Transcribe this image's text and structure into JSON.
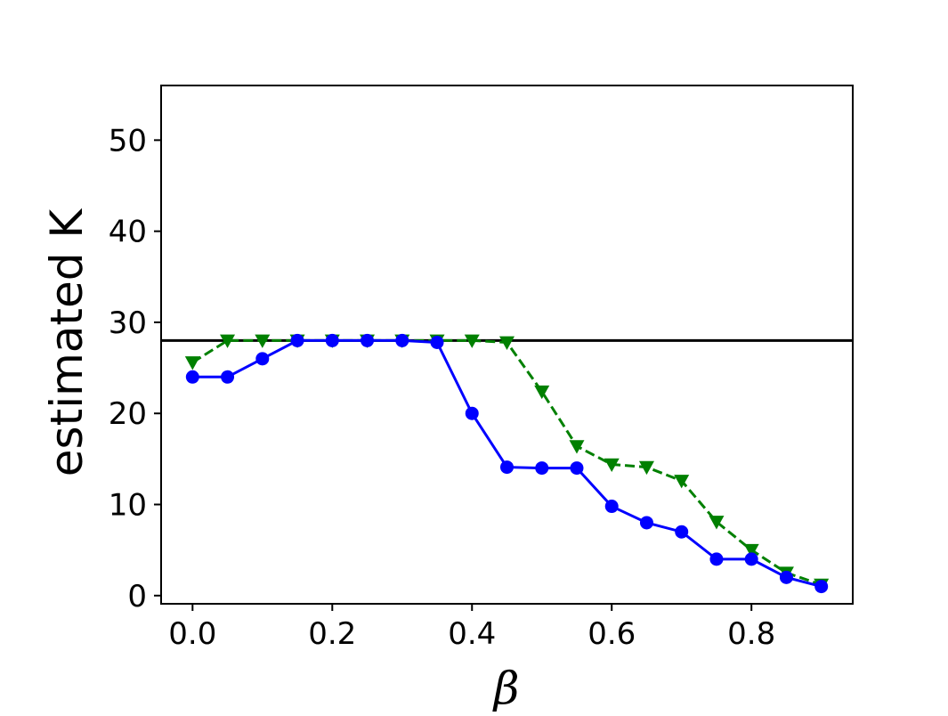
{
  "chart_data": {
    "type": "line",
    "title": "",
    "xlabel": "β",
    "ylabel": "estimated K",
    "xlim": [
      -0.045,
      0.945
    ],
    "ylim": [
      -0.9,
      56
    ],
    "xticks": [
      0.0,
      0.2,
      0.4,
      0.6,
      0.8
    ],
    "xtick_labels": [
      "0.0",
      "0.2",
      "0.4",
      "0.6",
      "0.8"
    ],
    "yticks": [
      0,
      10,
      20,
      30,
      40,
      50
    ],
    "ytick_labels": [
      "0",
      "10",
      "20",
      "30",
      "40",
      "50"
    ],
    "grid": false,
    "legend": "none",
    "x": [
      0.0,
      0.05,
      0.1,
      0.15,
      0.2,
      0.25,
      0.3,
      0.35,
      0.4,
      0.45,
      0.5,
      0.55,
      0.6,
      0.65,
      0.7,
      0.75,
      0.8,
      0.85,
      0.9
    ],
    "series": [
      {
        "color": "#0000ff",
        "marker": "circle",
        "linestyle": "solid",
        "values": [
          24,
          24,
          26,
          28,
          28,
          28,
          28,
          27.8,
          20,
          14.1,
          14,
          14,
          9.8,
          8,
          7,
          4,
          4,
          2,
          1
        ]
      },
      {
        "color": "#008000",
        "marker": "triangle-down",
        "linestyle": "dashed",
        "values": [
          25.6,
          28,
          28,
          28,
          28,
          28,
          28,
          28,
          28,
          27.8,
          22.4,
          16.4,
          14.4,
          14.1,
          12.6,
          8.1,
          5,
          2.5,
          1.2
        ]
      }
    ],
    "reference_line": {
      "y": 28,
      "color": "#000000"
    }
  }
}
